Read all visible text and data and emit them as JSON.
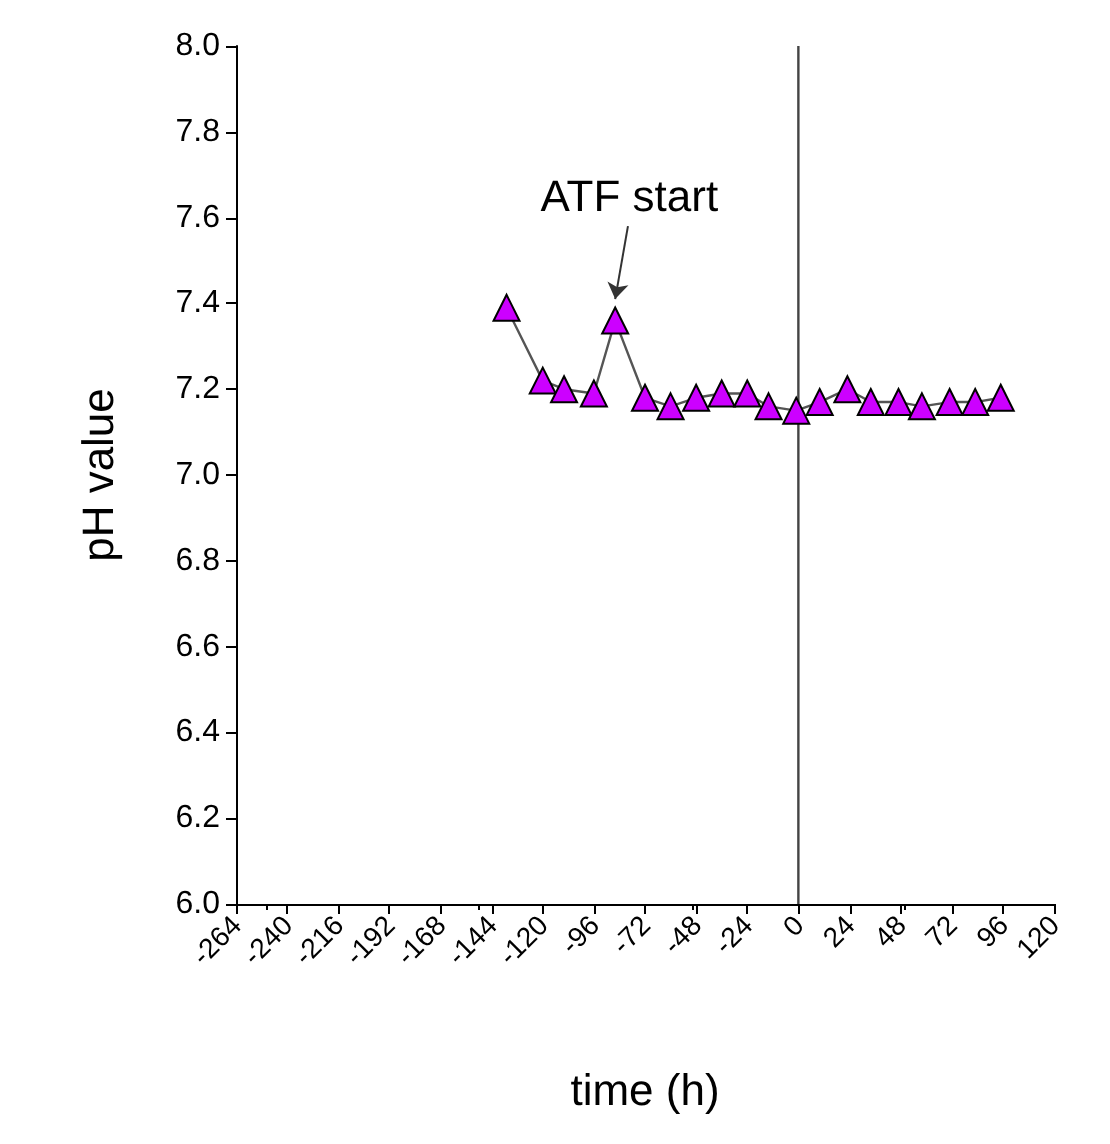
{
  "chart_data": {
    "type": "line",
    "xlabel": "time (h)",
    "ylabel": "pH value",
    "x": [
      -137,
      -120,
      -110,
      -96,
      -86,
      -72,
      -60,
      -48,
      -36,
      -24,
      -14,
      -1,
      10,
      23,
      34,
      47,
      58,
      71,
      83,
      95
    ],
    "series": [
      {
        "color": "#cc00ff",
        "values": [
          7.39,
          7.22,
          7.2,
          7.19,
          7.36,
          7.18,
          7.16,
          7.18,
          7.19,
          7.19,
          7.16,
          7.15,
          7.17,
          7.2,
          7.17,
          7.17,
          7.16,
          7.17,
          7.17,
          7.18
        ]
      }
    ],
    "marker": "triangle",
    "line_style": "solid",
    "grid": false,
    "xlim": [
      -264,
      120
    ],
    "xticks": [
      -264,
      -240,
      -216,
      -192,
      -168,
      -144,
      -120,
      -96,
      -72,
      -48,
      -24,
      0,
      24,
      48,
      72,
      96,
      120
    ],
    "ylim": [
      6,
      8
    ],
    "yticks": [
      {
        "value": 6,
        "label": "6.0"
      },
      {
        "value": 6.2,
        "label": "6.2"
      },
      {
        "value": 6.4,
        "label": "6.4"
      },
      {
        "value": 6.6,
        "label": "6.6"
      },
      {
        "value": 6.8,
        "label": "6.8"
      },
      {
        "value": 7,
        "label": "7.0"
      },
      {
        "value": 7.2,
        "label": "7.2"
      },
      {
        "value": 7.4,
        "label": "7.4"
      },
      {
        "value": 7.6,
        "label": "7.6"
      },
      {
        "value": 7.8,
        "label": "7.8"
      },
      {
        "value": 8,
        "label": "8.0"
      }
    ],
    "ref_lines": [
      {
        "axis": "x",
        "value": 0,
        "color": "#444444"
      }
    ],
    "annotations": [
      {
        "text": "ATF start",
        "x": -86,
        "y": 7.36
      }
    ]
  }
}
